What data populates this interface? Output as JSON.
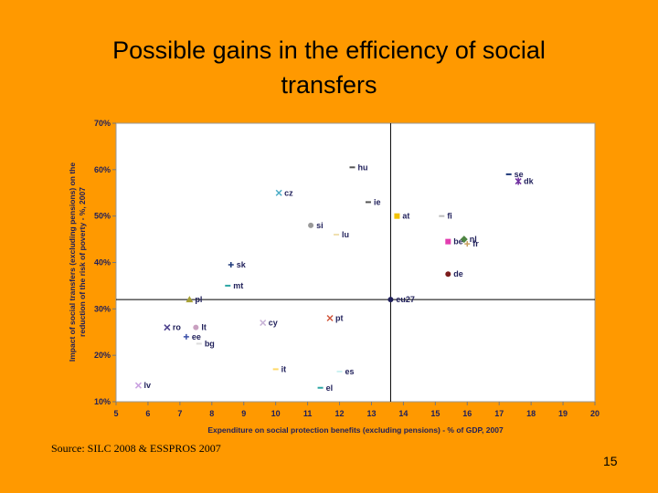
{
  "slide": {
    "title_line1": "Possible gains in the efficiency of social",
    "title_line2": "transfers",
    "source": "Source: SILC 2008 & ESSPROS 2007",
    "page_number": "15"
  },
  "colors": {
    "background": "#FF9900",
    "plot_area": "#FFFFFF"
  },
  "chart_data": {
    "type": "scatter",
    "xlabel": "Expenditure on social protection benefits (excluding pensions) - % of GDP, 2007",
    "ylabel": "Impact of social transfers (excluding pensions) on the reduction of the risk of poverty - %, 2007",
    "xlim": [
      5,
      20
    ],
    "ylim": [
      10,
      70
    ],
    "xticks": [
      5,
      6,
      7,
      8,
      9,
      10,
      11,
      12,
      13,
      14,
      15,
      16,
      17,
      18,
      19,
      20
    ],
    "yticks": [
      10,
      20,
      30,
      40,
      50,
      60,
      70
    ],
    "ytick_labels": [
      "10%",
      "20%",
      "30%",
      "40%",
      "50%",
      "60%",
      "70%"
    ],
    "reference_lines": {
      "x": 13.6,
      "y": 32
    },
    "grid": false,
    "legend": "none",
    "points": [
      {
        "label": "hu",
        "x": 12.4,
        "y": 60.5,
        "marker": "-",
        "color": "#555555"
      },
      {
        "label": "se",
        "x": 17.3,
        "y": 59,
        "marker": "-",
        "color": "#1F3A7A"
      },
      {
        "label": "dk",
        "x": 17.6,
        "y": 57.5,
        "marker": "*",
        "color": "#7030A0"
      },
      {
        "label": "cz",
        "x": 10.1,
        "y": 55,
        "marker": "x",
        "color": "#4BACC6"
      },
      {
        "label": "ie",
        "x": 12.9,
        "y": 53,
        "marker": "-",
        "color": "#555555"
      },
      {
        "label": "at",
        "x": 13.8,
        "y": 50,
        "marker": "square",
        "color": "#F2C200"
      },
      {
        "label": "fi",
        "x": 15.2,
        "y": 50,
        "marker": "-",
        "color": "#BBBBBB"
      },
      {
        "label": "si",
        "x": 11.1,
        "y": 48,
        "marker": "circle",
        "color": "#999999"
      },
      {
        "label": "lu",
        "x": 11.9,
        "y": 46,
        "marker": "-",
        "color": "#F0E0B0"
      },
      {
        "label": "be",
        "x": 15.4,
        "y": 44.5,
        "marker": "square",
        "color": "#E23DB0"
      },
      {
        "label": "nl",
        "x": 15.9,
        "y": 45,
        "marker": "diamond",
        "color": "#4E8542"
      },
      {
        "label": "fr",
        "x": 16,
        "y": 44,
        "marker": "+",
        "color": "#C8A060"
      },
      {
        "label": "de",
        "x": 15.4,
        "y": 37.5,
        "marker": "circle",
        "color": "#7B1C1C"
      },
      {
        "label": "sk",
        "x": 8.6,
        "y": 39.5,
        "marker": "+",
        "color": "#1F3A7A"
      },
      {
        "label": "mt",
        "x": 8.5,
        "y": 35,
        "marker": "-",
        "color": "#2CA6A4"
      },
      {
        "label": "pl",
        "x": 7.3,
        "y": 32,
        "marker": "triangle",
        "color": "#A6A035"
      },
      {
        "label": "eu27",
        "x": 13.6,
        "y": 32,
        "marker": "circle",
        "color": "#1F1F5A"
      },
      {
        "label": "cy",
        "x": 9.6,
        "y": 27,
        "marker": "x",
        "color": "#C9B4D8"
      },
      {
        "label": "pt",
        "x": 11.7,
        "y": 28,
        "marker": "x",
        "color": "#D0573C"
      },
      {
        "label": "ro",
        "x": 6.6,
        "y": 26,
        "marker": "x",
        "color": "#4B3F8C"
      },
      {
        "label": "lt",
        "x": 7.5,
        "y": 26,
        "marker": "circle",
        "color": "#C9A0C0"
      },
      {
        "label": "ee",
        "x": 7.2,
        "y": 24,
        "marker": "+",
        "color": "#3B4FA8"
      },
      {
        "label": "bg",
        "x": 7.6,
        "y": 22.5,
        "marker": "-",
        "color": "#DDDDDD"
      },
      {
        "label": "it",
        "x": 10,
        "y": 17,
        "marker": "-",
        "color": "#FFD966"
      },
      {
        "label": "es",
        "x": 12,
        "y": 16.5,
        "marker": "-",
        "color": "#CCF2F2"
      },
      {
        "label": "el",
        "x": 11.4,
        "y": 13,
        "marker": "-",
        "color": "#2CA6A4"
      },
      {
        "label": "lv",
        "x": 5.7,
        "y": 13.5,
        "marker": "x",
        "color": "#C9A0E0"
      }
    ]
  }
}
